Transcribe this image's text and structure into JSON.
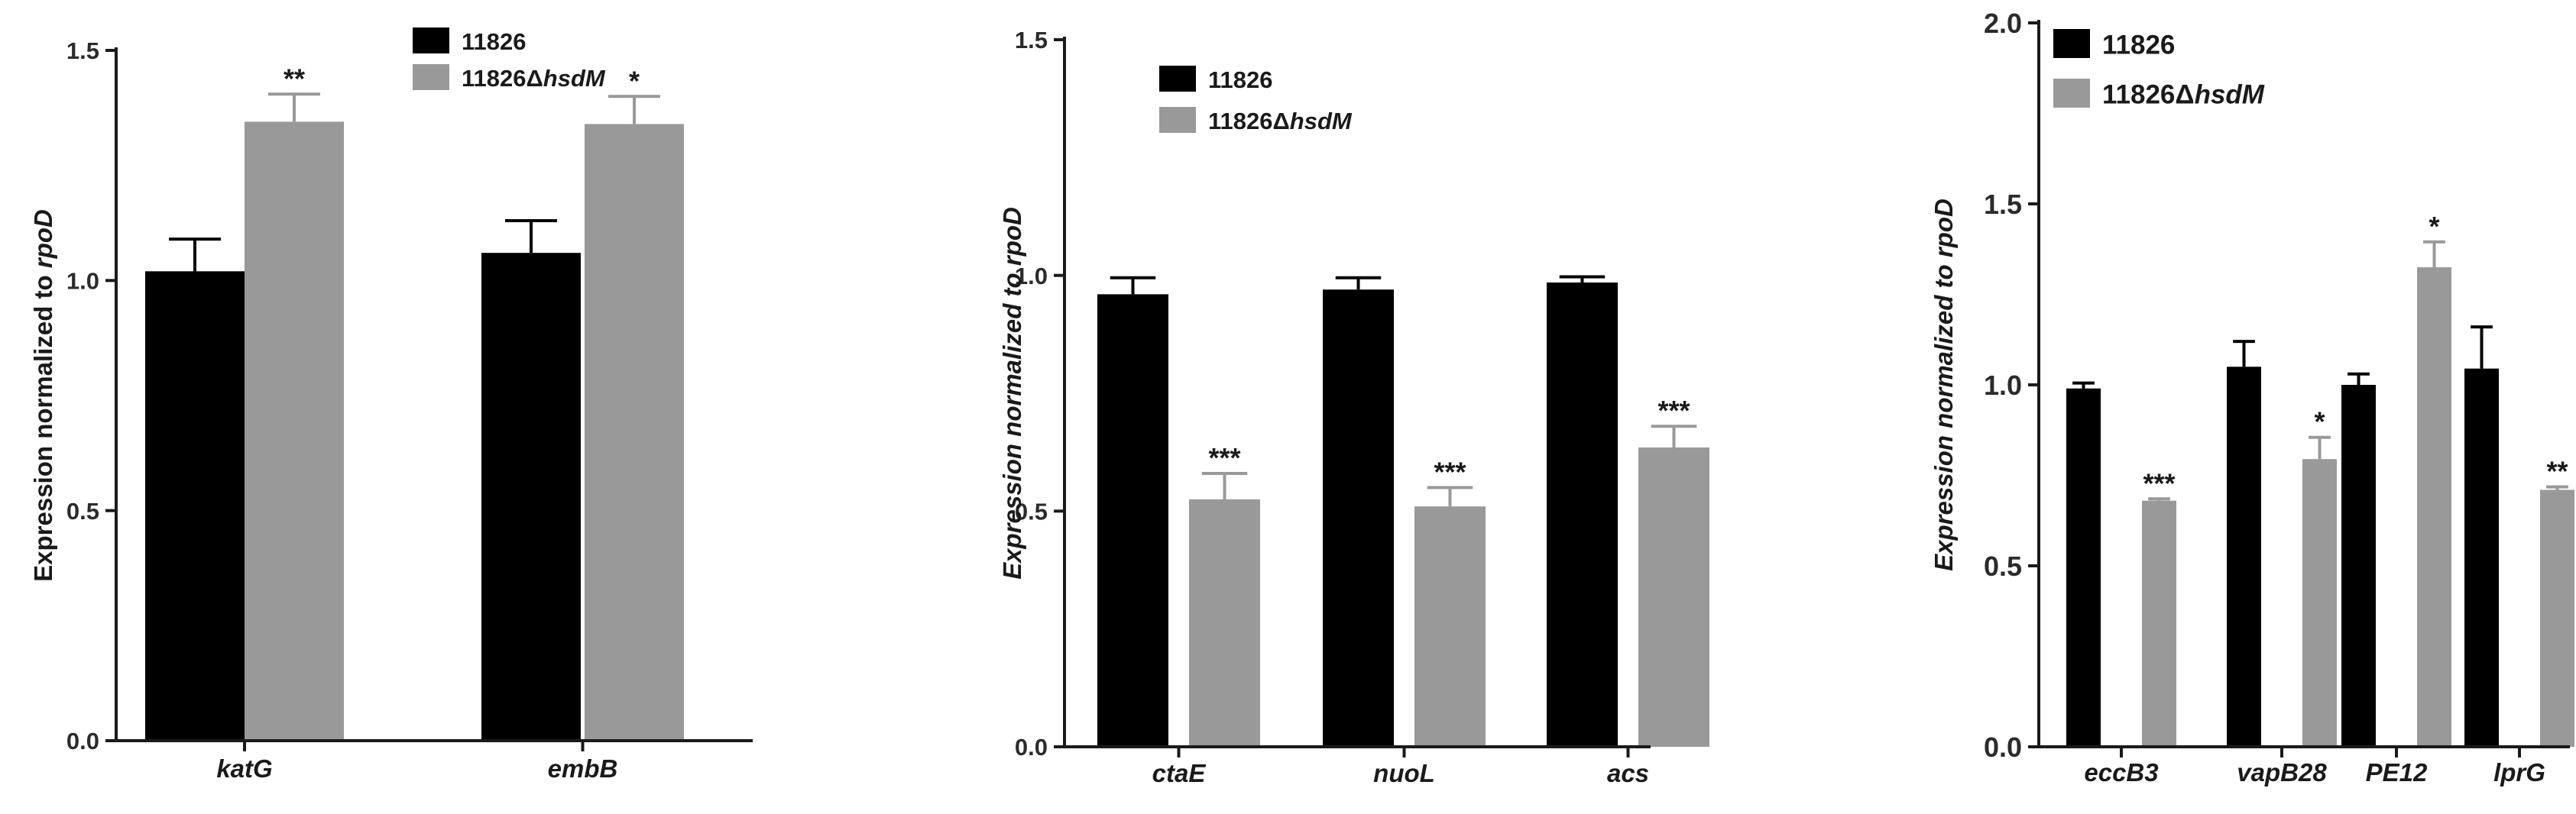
{
  "colors": {
    "wt": "#000000",
    "mutant": "#999999",
    "axis": "#1a1a1a"
  },
  "chart_data": [
    {
      "type": "bar",
      "ylabel_pre": "Expression normalized to ",
      "ylabel_em": "rpoD",
      "ylabel_italic": false,
      "ylim": [
        0,
        1.5
      ],
      "yticks": [
        "0.0",
        "0.5",
        "1.0",
        "1.5"
      ],
      "categories": [
        "katG",
        "embB"
      ],
      "series": [
        {
          "name": "11826",
          "values": [
            1.02,
            1.06
          ],
          "errors": [
            0.07,
            0.07
          ]
        },
        {
          "name": "11826ΔhsdM",
          "values": [
            1.345,
            1.34
          ],
          "errors": [
            0.06,
            0.06
          ]
        }
      ],
      "significance": [
        [
          "",
          ""
        ],
        [
          "**",
          "*"
        ]
      ],
      "legend": [
        {
          "pre": "11826",
          "em": ""
        },
        {
          "pre": "11826Δ",
          "em": "hsdM"
        }
      ],
      "legend_position": "top-right"
    },
    {
      "type": "bar",
      "ylabel_pre": "Expression normalized to ",
      "ylabel_em": "rpoD",
      "ylabel_italic": true,
      "ylim": [
        0,
        1.5
      ],
      "yticks": [
        "0.0",
        "0.5",
        "1.0",
        "1.5"
      ],
      "categories": [
        "ctaE",
        "nuoL",
        "acs"
      ],
      "series": [
        {
          "name": "11826",
          "values": [
            0.96,
            0.97,
            0.985
          ],
          "errors": [
            0.035,
            0.025,
            0.012
          ]
        },
        {
          "name": "11826ΔhsdM",
          "values": [
            0.525,
            0.51,
            0.635
          ],
          "errors": [
            0.055,
            0.04,
            0.045
          ]
        }
      ],
      "significance": [
        [
          "",
          "",
          ""
        ],
        [
          "***",
          "***",
          "***"
        ]
      ],
      "legend": [
        {
          "pre": "11826",
          "em": ""
        },
        {
          "pre": "11826Δ",
          "em": "hsdM"
        }
      ],
      "legend_position": "top-left"
    },
    {
      "type": "bar",
      "ylabel_pre": "Expression normalized to ",
      "ylabel_em": "rpoD",
      "ylabel_italic": true,
      "ylim": [
        0,
        2.0
      ],
      "yticks": [
        "0.0",
        "0.5",
        "1.0",
        "1.5",
        "2.0"
      ],
      "categories": [
        "eccB3",
        "vapB28",
        "PE12",
        "lprG"
      ],
      "series": [
        {
          "name": "11826",
          "values": [
            0.99,
            1.05,
            1.0,
            1.045
          ],
          "errors": [
            0.015,
            0.07,
            0.03,
            0.115
          ]
        },
        {
          "name": "11826ΔhsdM",
          "values": [
            0.68,
            0.795,
            1.325,
            0.71
          ],
          "errors": [
            0.005,
            0.06,
            0.07,
            0.008
          ]
        }
      ],
      "significance": [
        [
          "",
          "",
          "",
          ""
        ],
        [
          "***",
          "*",
          "*",
          "**"
        ]
      ],
      "legend": [
        {
          "pre": "11826",
          "em": ""
        },
        {
          "pre": "11826Δ",
          "em": "hsdM"
        }
      ],
      "legend_position": "top-left"
    }
  ]
}
